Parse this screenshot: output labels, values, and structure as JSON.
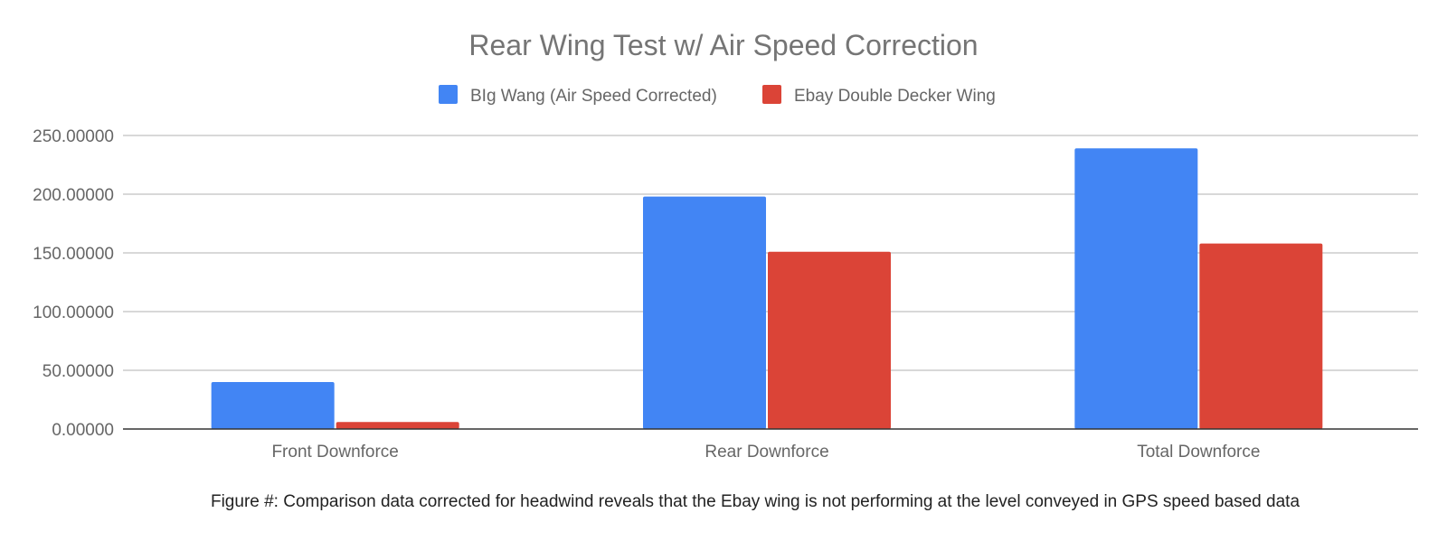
{
  "chart_data": {
    "type": "bar",
    "title": "Rear Wing Test w/ Air Speed Correction",
    "categories": [
      "Front Downforce",
      "Rear Downforce",
      "Total Downforce"
    ],
    "series": [
      {
        "name": "BIg Wang (Air Speed Corrected)",
        "values": [
          40,
          198,
          239
        ],
        "color": "#4285f4"
      },
      {
        "name": "Ebay Double Decker Wing",
        "values": [
          6,
          151,
          158
        ],
        "color": "#db4437"
      }
    ],
    "ylim": [
      0,
      250
    ],
    "yticks": [
      0,
      50,
      100,
      150,
      200,
      250
    ],
    "ytick_labels": [
      "0.00000",
      "50.00000",
      "100.00000",
      "150.00000",
      "200.00000",
      "250.00000"
    ],
    "xlabel": "",
    "ylabel": "",
    "grid": true,
    "legend": "top-center"
  },
  "caption": "Figure #: Comparison data corrected for headwind reveals that the Ebay wing is not performing at the level conveyed in GPS speed based data"
}
